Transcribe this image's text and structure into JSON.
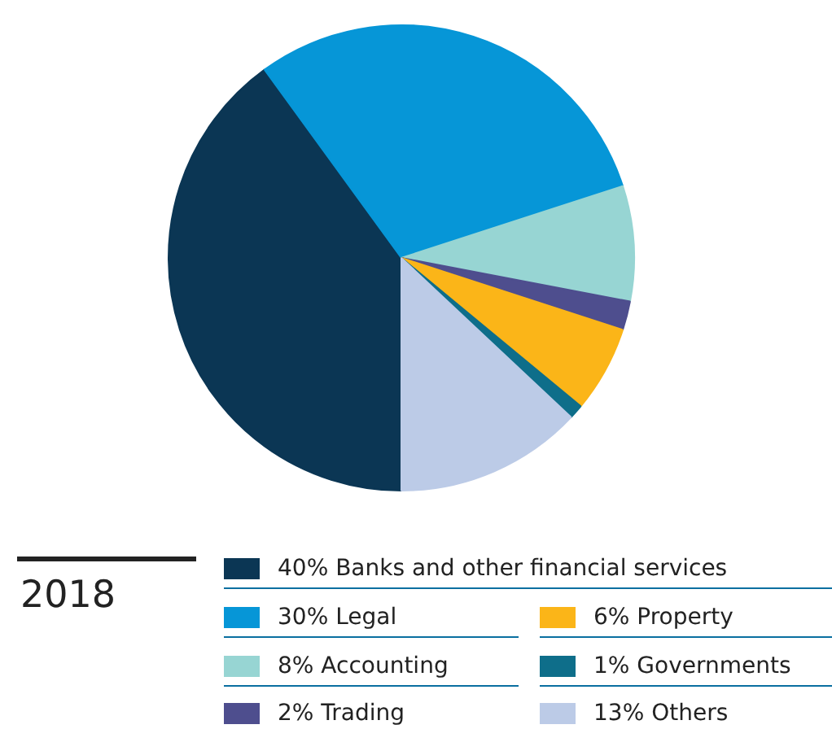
{
  "chart_data": {
    "type": "pie",
    "title": "2018",
    "categories": [
      "Banks and other financial services",
      "Legal",
      "Accounting",
      "Trading",
      "Property",
      "Governments",
      "Others"
    ],
    "values": [
      40,
      30,
      8,
      2,
      6,
      1,
      13
    ],
    "colors": [
      "#0b3654",
      "#0696d7",
      "#97d5d3",
      "#4e4e8e",
      "#fbb518",
      "#0e6e8a",
      "#bccbe7"
    ],
    "value_labels": [
      "40%",
      "30%",
      "8%",
      "2%",
      "6%",
      "1%",
      "13%"
    ],
    "legend": "bottom"
  }
}
